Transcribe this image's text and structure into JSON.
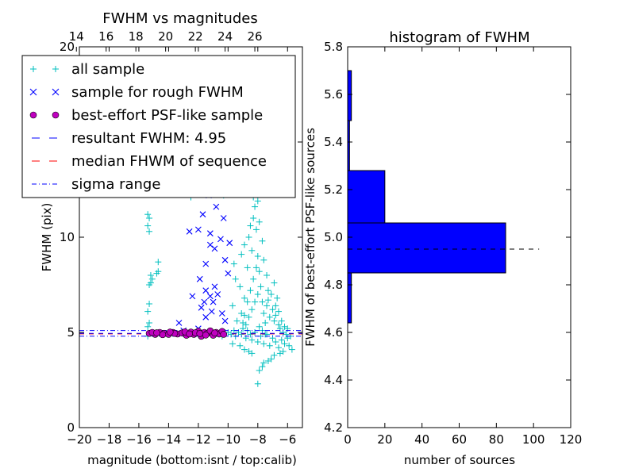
{
  "chart_data": [
    {
      "type": "scatter",
      "title": "FWHM vs magnitudes",
      "xlabel": "magnitude (bottom:isnt / top:calib)",
      "ylabel": "FWHM (pix)",
      "xlim": [
        -20,
        -5
      ],
      "ylim": [
        0,
        20
      ],
      "x_ticks": [
        -20,
        -18,
        -16,
        -14,
        -12,
        -10,
        -8,
        -6
      ],
      "x_tick_labels": [
        "−20",
        "−18",
        "−16",
        "−14",
        "−12",
        "−10",
        "−8",
        "−6"
      ],
      "y_ticks": [
        0,
        5,
        10,
        15,
        20
      ],
      "y_tick_labels": [
        "0",
        "5",
        "10",
        "15",
        "20"
      ],
      "top_axis": {
        "ticks": [
          14,
          16,
          18,
          20,
          22,
          24,
          26
        ],
        "tick_labels": [
          "14",
          "16",
          "18",
          "20",
          "22",
          "24",
          "26"
        ],
        "offset": 34.2
      },
      "legend_placement": "upper-left",
      "legend": [
        {
          "label": "all sample",
          "marker": "+",
          "color": "#00bfbf"
        },
        {
          "label": "sample for rough FWHM",
          "marker": "x",
          "color": "#0000ff"
        },
        {
          "label": "best-effort PSF-like sample",
          "marker": "o",
          "color": "#bf00bf"
        },
        {
          "label": "resultant FWHM: 4.95",
          "style": "dashed",
          "color": "#0000ff"
        },
        {
          "label": "median FHWM of sequence",
          "style": "dashed",
          "color": "#ff0000"
        },
        {
          "label": "sigma range",
          "style": "dashdot",
          "color": "#0000ff"
        }
      ],
      "reference_lines": {
        "resultant_fwhm": 4.95,
        "median_fwhm": 4.92,
        "sigma_range": [
          4.8,
          5.1
        ]
      },
      "series": [
        {
          "name": "all sample",
          "marker": "+",
          "color": "#00bfbf",
          "points": [
            [
              -15.4,
              11.2
            ],
            [
              -15.3,
              11.0
            ],
            [
              -15.4,
              10.6
            ],
            [
              -15.3,
              10.3
            ],
            [
              -15.2,
              7.6
            ],
            [
              -15.3,
              7.5
            ],
            [
              -15.3,
              6.5
            ],
            [
              -15.4,
              6.1
            ],
            [
              -15.2,
              8.0
            ],
            [
              -14.7,
              8.7
            ],
            [
              -14.7,
              8.2
            ],
            [
              -14.8,
              8.1
            ],
            [
              -15.1,
              7.8
            ],
            [
              -15.4,
              5.3
            ],
            [
              -15.3,
              5.5
            ],
            [
              -15.4,
              4.8
            ],
            [
              -13.4,
              12.6
            ],
            [
              -12.5,
              12.1
            ],
            [
              -10.3,
              12.2
            ],
            [
              -10.6,
              4.9
            ],
            [
              -10.2,
              5.0
            ],
            [
              -10.4,
              4.8
            ],
            [
              -10.0,
              5.0
            ],
            [
              -9.8,
              4.9
            ],
            [
              -9.6,
              5.1
            ],
            [
              -9.5,
              4.8
            ],
            [
              -9.3,
              5.0
            ],
            [
              -9.1,
              4.9
            ],
            [
              -9.0,
              5.2
            ],
            [
              -8.8,
              4.7
            ],
            [
              -8.7,
              5.1
            ],
            [
              -8.5,
              4.9
            ],
            [
              -8.4,
              4.6
            ],
            [
              -8.2,
              5.0
            ],
            [
              -8.0,
              4.5
            ],
            [
              -7.8,
              4.8
            ],
            [
              -7.6,
              4.4
            ],
            [
              -7.4,
              4.9
            ],
            [
              -7.2,
              4.3
            ],
            [
              -7.0,
              4.7
            ],
            [
              -6.8,
              4.5
            ],
            [
              -6.6,
              4.2
            ],
            [
              -6.4,
              4.6
            ],
            [
              -6.2,
              4.4
            ],
            [
              -5.9,
              4.3
            ],
            [
              -5.7,
              4.1
            ],
            [
              -6.0,
              4.7
            ],
            [
              -6.3,
              4.0
            ],
            [
              -6.5,
              3.9
            ],
            [
              -6.9,
              3.8
            ],
            [
              -7.1,
              3.6
            ],
            [
              -7.3,
              3.5
            ],
            [
              -7.6,
              3.4
            ],
            [
              -7.7,
              3.2
            ],
            [
              -7.9,
              3.0
            ],
            [
              -8.0,
              2.3
            ],
            [
              -8.4,
              3.9
            ],
            [
              -8.6,
              4.0
            ],
            [
              -8.9,
              4.1
            ],
            [
              -9.2,
              4.3
            ],
            [
              -9.7,
              4.4
            ],
            [
              -9.4,
              5.6
            ],
            [
              -9.1,
              6.0
            ],
            [
              -8.9,
              6.8
            ],
            [
              -9.2,
              7.4
            ],
            [
              -9.5,
              7.8
            ],
            [
              -9.7,
              6.4
            ],
            [
              -9.6,
              8.6
            ],
            [
              -9.1,
              9.1
            ],
            [
              -8.9,
              9.6
            ],
            [
              -8.7,
              8.4
            ],
            [
              -8.6,
              10.0
            ],
            [
              -8.5,
              10.6
            ],
            [
              -8.4,
              9.3
            ],
            [
              -8.3,
              11.0
            ],
            [
              -8.2,
              11.6
            ],
            [
              -8.3,
              12.1
            ],
            [
              -8.1,
              10.4
            ],
            [
              -8.0,
              9.0
            ],
            [
              -7.9,
              8.2
            ],
            [
              -7.8,
              7.4
            ],
            [
              -7.7,
              6.6
            ],
            [
              -7.6,
              6.0
            ],
            [
              -7.5,
              5.5
            ],
            [
              -7.4,
              6.4
            ],
            [
              -7.3,
              7.2
            ],
            [
              -7.2,
              5.8
            ],
            [
              -7.0,
              6.2
            ],
            [
              -6.9,
              5.6
            ],
            [
              -6.8,
              5.9
            ],
            [
              -6.7,
              6.8
            ],
            [
              -6.6,
              5.4
            ],
            [
              -6.5,
              5.2
            ],
            [
              -6.4,
              5.6
            ],
            [
              -6.3,
              5.0
            ],
            [
              -6.2,
              5.3
            ],
            [
              -6.1,
              4.9
            ],
            [
              -6.0,
              5.2
            ],
            [
              -5.8,
              4.8
            ],
            [
              -8.8,
              5.4
            ],
            [
              -8.6,
              5.8
            ],
            [
              -8.4,
              6.2
            ],
            [
              -8.2,
              6.6
            ],
            [
              -8.0,
              7.0
            ],
            [
              -7.9,
              5.3
            ],
            [
              -7.7,
              5.1
            ],
            [
              -7.5,
              4.9
            ],
            [
              -8.1,
              8.4
            ],
            [
              -8.3,
              7.8
            ],
            [
              -8.5,
              7.2
            ],
            [
              -8.7,
              6.6
            ],
            [
              -8.9,
              5.9
            ],
            [
              -9.0,
              5.5
            ],
            [
              -7.6,
              8.8
            ],
            [
              -7.7,
              9.8
            ],
            [
              -7.9,
              10.8
            ],
            [
              -8.0,
              11.9
            ],
            [
              -7.7,
              12.7
            ],
            [
              -7.4,
              8.0
            ],
            [
              -7.3,
              6.7
            ],
            [
              -7.1,
              7.0
            ],
            [
              -6.8,
              6.4
            ],
            [
              -6.6,
              6.1
            ],
            [
              -6.9,
              7.6
            ]
          ]
        },
        {
          "name": "sample for rough FWHM",
          "marker": "x",
          "color": "#0000ff",
          "points": [
            [
              -13.3,
              5.5
            ],
            [
              -13.0,
              5.1
            ],
            [
              -12.4,
              6.9
            ],
            [
              -12.0,
              5.2
            ],
            [
              -11.8,
              6.3
            ],
            [
              -11.6,
              6.6
            ],
            [
              -11.5,
              7.2
            ],
            [
              -11.5,
              5.8
            ],
            [
              -11.2,
              6.9
            ],
            [
              -11.1,
              6.1
            ],
            [
              -11.0,
              6.6
            ],
            [
              -11.2,
              9.6
            ],
            [
              -11.2,
              10.2
            ],
            [
              -10.9,
              9.4
            ],
            [
              -11.5,
              8.6
            ],
            [
              -12.0,
              10.4
            ],
            [
              -11.7,
              11.2
            ],
            [
              -10.8,
              11.6
            ],
            [
              -10.6,
              12.4
            ],
            [
              -10.3,
              11.0
            ],
            [
              -10.1,
              12.6
            ],
            [
              -11.3,
              12.2
            ],
            [
              -10.9,
              7.4
            ],
            [
              -10.2,
              5.6
            ],
            [
              -10.4,
              6.0
            ],
            [
              -10.0,
              8.1
            ],
            [
              -10.5,
              9.9
            ],
            [
              -12.6,
              10.3
            ],
            [
              -11.9,
              7.8
            ],
            [
              -10.7,
              7.0
            ],
            [
              -10.2,
              8.8
            ],
            [
              -9.9,
              9.7
            ]
          ]
        },
        {
          "name": "best-effort PSF-like sample",
          "marker": "o",
          "color": "#bf00bf",
          "points": [
            [
              -15.3,
              4.95
            ],
            [
              -14.9,
              4.9
            ],
            [
              -14.6,
              5.0
            ],
            [
              -14.3,
              4.95
            ],
            [
              -14.0,
              4.9
            ],
            [
              -13.7,
              5.0
            ],
            [
              -13.4,
              4.92
            ],
            [
              -13.1,
              4.97
            ],
            [
              -12.8,
              4.85
            ],
            [
              -12.5,
              5.02
            ],
            [
              -12.3,
              4.9
            ],
            [
              -12.0,
              5.06
            ],
            [
              -11.8,
              4.8
            ],
            [
              -11.6,
              5.0
            ],
            [
              -11.4,
              4.95
            ],
            [
              -11.2,
              5.08
            ],
            [
              -11.0,
              4.85
            ],
            [
              -10.8,
              5.0
            ],
            [
              -10.6,
              4.92
            ],
            [
              -10.4,
              5.05
            ],
            [
              -15.1,
              5.0
            ],
            [
              -14.4,
              4.88
            ],
            [
              -13.6,
              4.95
            ],
            [
              -12.9,
              5.03
            ],
            [
              -12.2,
              4.98
            ],
            [
              -11.5,
              4.86
            ],
            [
              -10.9,
              4.97
            ],
            [
              -10.3,
              4.9
            ],
            [
              -12.6,
              4.92
            ],
            [
              -11.9,
              4.94
            ],
            [
              -13.9,
              5.02
            ],
            [
              -14.8,
              4.98
            ]
          ]
        }
      ]
    },
    {
      "type": "bar",
      "orientation": "horizontal",
      "title": "histogram of FWHM",
      "xlabel": "number of sources",
      "ylabel": "FWHM of best-effort PSF-like sources",
      "xlim": [
        0,
        120
      ],
      "ylim": [
        4.2,
        5.8
      ],
      "x_ticks": [
        0,
        20,
        40,
        60,
        80,
        100,
        120
      ],
      "x_tick_labels": [
        "0",
        "20",
        "40",
        "60",
        "80",
        "100",
        "120"
      ],
      "y_ticks": [
        4.2,
        4.4,
        4.6,
        4.8,
        5.0,
        5.2,
        5.4,
        5.6,
        5.8
      ],
      "y_tick_labels": [
        "4.2",
        "4.4",
        "4.6",
        "4.8",
        "5.0",
        "5.2",
        "5.4",
        "5.6",
        "5.8"
      ],
      "bins": [
        {
          "from": 4.64,
          "to": 4.85,
          "count": 2
        },
        {
          "from": 4.85,
          "to": 5.06,
          "count": 85
        },
        {
          "from": 5.06,
          "to": 5.28,
          "count": 20
        },
        {
          "from": 5.28,
          "to": 5.49,
          "count": 1
        },
        {
          "from": 5.49,
          "to": 5.7,
          "count": 2
        }
      ],
      "reference_line": {
        "y": 4.95,
        "x_to": 103,
        "style": "dashed",
        "color": "#000000"
      },
      "bar_color": "#0000ff"
    }
  ]
}
